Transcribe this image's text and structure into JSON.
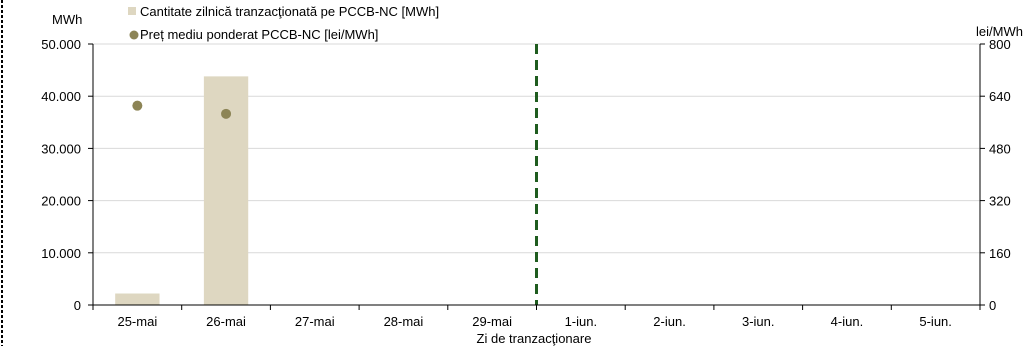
{
  "chart_data": {
    "type": "bar",
    "categories": [
      "25-mai",
      "26-mai",
      "27-mai",
      "28-mai",
      "29-mai",
      "1-iun.",
      "2-iun.",
      "3-iun.",
      "4-iun.",
      "5-iun."
    ],
    "series": [
      {
        "name": "Cantitate zilnică tranzacţionată pe PCCB-NC [MWh]",
        "kind": "bar",
        "axis": "left",
        "color": "#ded7c1",
        "values": [
          2200,
          43800,
          null,
          null,
          null,
          null,
          null,
          null,
          null,
          null
        ]
      },
      {
        "name": "Preț mediu ponderat PCCB-NC [lei/MWh]",
        "kind": "scatter",
        "axis": "right",
        "color": "#8c8455",
        "values": [
          611,
          586,
          null,
          null,
          null,
          null,
          null,
          null,
          null,
          null
        ]
      }
    ],
    "xlabel": "Zi de tranzacţionare",
    "ylabel": "MWh",
    "y2label": "lei/MWh",
    "ylim": [
      0,
      50000
    ],
    "y2lim": [
      0,
      800
    ],
    "yticks": [
      "0",
      "10.000",
      "20.000",
      "30.000",
      "40.000",
      "50.000"
    ],
    "y2ticks": [
      "0",
      "160",
      "320",
      "480",
      "640",
      "800"
    ],
    "divider_after_category": "29-mai",
    "divider_color": "#1f5c1f",
    "grid": true,
    "legend_position": "top-left"
  }
}
